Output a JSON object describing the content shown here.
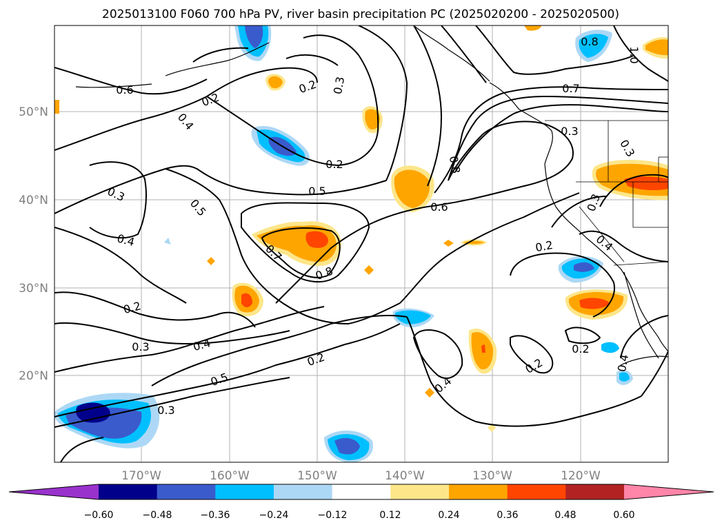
{
  "title": "2025013100 F060 700 hPa PV, river basin precipitation PC (2025020200 - 2025020500)",
  "map": {
    "lat_ticks": [
      "50°N",
      "40°N",
      "30°N",
      "20°N"
    ],
    "lon_ticks": [
      "170°W",
      "160°W",
      "150°W",
      "140°W",
      "130°W",
      "120°W"
    ]
  },
  "colorbar": {
    "levels": [
      "−0.60",
      "−0.48",
      "−0.36",
      "−0.24",
      "−0.12",
      "0.12",
      "0.24",
      "0.36",
      "0.48",
      "0.60"
    ],
    "colors": [
      "#9932cc",
      "#00008b",
      "#3a5bcc",
      "#00bfff",
      "#add8f5",
      "#ffffff",
      "#fde68a",
      "#ffa500",
      "#ff4500",
      "#b22222",
      "#ff85a9"
    ],
    "extend": "both"
  },
  "contour_labels": [
    "0.6",
    "0.4",
    "0.2",
    "0.2",
    "0.3",
    "0.2",
    "0.8",
    "1.0",
    "0.7",
    "0.3",
    "0.3",
    "0.3",
    "0.4",
    "0.5",
    "0.5",
    "0.8",
    "0.6",
    "0.3",
    "0.4",
    "0.7",
    "0.8",
    "0.2",
    "0.2",
    "0.3",
    "0.4",
    "0.2",
    "0.5",
    "0.3",
    "0.4",
    "0.2",
    "0.2",
    "0.4"
  ]
}
